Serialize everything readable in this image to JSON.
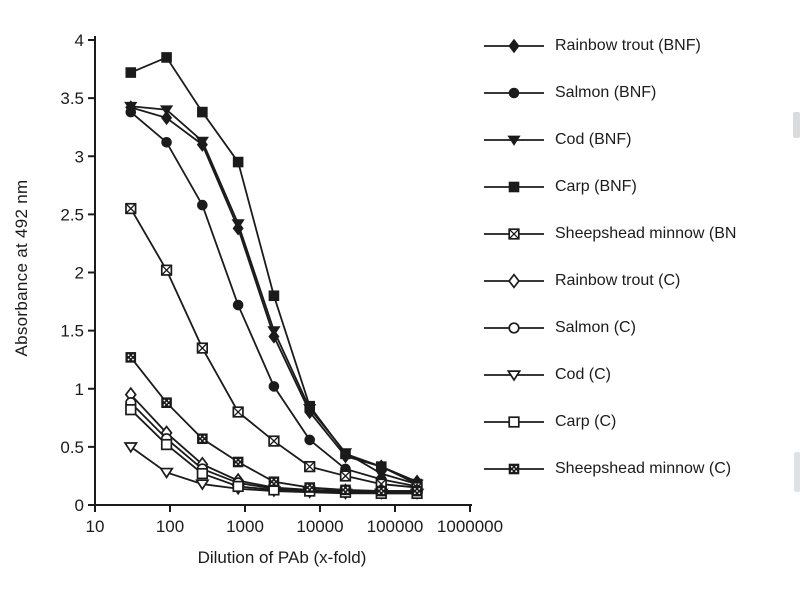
{
  "page": {
    "background": "#ffffff",
    "ink_color": "#1b1b1b"
  },
  "chart_data": {
    "type": "line",
    "title": "",
    "xlabel": "Dilution of PAb (x-fold)",
    "ylabel": "Absorbance at  492 nm",
    "x_scale": "log10",
    "xlim": [
      10,
      1000000
    ],
    "ylim": [
      0,
      4
    ],
    "grid": false,
    "legend_position": "right",
    "x_ticks": [
      10,
      100,
      1000,
      10000,
      100000,
      1000000
    ],
    "x_tick_labels": [
      "10",
      "100",
      "1000",
      "10000",
      "100000",
      "1000000"
    ],
    "y_ticks": [
      0,
      0.5,
      1,
      1.5,
      2,
      2.5,
      3,
      3.5,
      4
    ],
    "y_tick_labels": [
      "0",
      "0.5",
      "1",
      "1.5",
      "2",
      "2.5",
      "3",
      "3.5",
      "4"
    ],
    "x": [
      30,
      90,
      270,
      810,
      2430,
      7290,
      21870,
      65610,
      196830
    ],
    "series": [
      {
        "name": "Rainbow trout (BNF)",
        "marker": "diamond-filled",
        "values": [
          3.42,
          3.33,
          3.1,
          2.38,
          1.45,
          0.8,
          0.42,
          0.33,
          0.2
        ]
      },
      {
        "name": "Salmon (BNF)",
        "marker": "circle-filled",
        "values": [
          3.38,
          3.12,
          2.58,
          1.72,
          1.02,
          0.56,
          0.31,
          0.22,
          0.16
        ]
      },
      {
        "name": "Cod (BNF)",
        "marker": "triangle-down-filled",
        "values": [
          3.43,
          3.4,
          3.13,
          2.42,
          1.5,
          0.83,
          0.45,
          0.27,
          0.18
        ]
      },
      {
        "name": "Carp (BNF)",
        "marker": "square-filled",
        "values": [
          3.72,
          3.85,
          3.38,
          2.95,
          1.8,
          0.85,
          0.44,
          0.33,
          0.18
        ]
      },
      {
        "name": "Sheepshead minnow (BN",
        "marker": "square-x",
        "values": [
          2.55,
          2.02,
          1.35,
          0.8,
          0.55,
          0.33,
          0.25,
          0.18,
          0.15
        ]
      },
      {
        "name": "Rainbow trout (C)",
        "marker": "diamond-open",
        "values": [
          0.95,
          0.62,
          0.35,
          0.21,
          0.15,
          0.13,
          0.12,
          0.12,
          0.12
        ]
      },
      {
        "name": "Salmon (C)",
        "marker": "circle-open",
        "values": [
          0.88,
          0.57,
          0.31,
          0.19,
          0.14,
          0.13,
          0.12,
          0.11,
          0.11
        ]
      },
      {
        "name": "Cod (C)",
        "marker": "triangle-down-open",
        "values": [
          0.5,
          0.28,
          0.18,
          0.14,
          0.12,
          0.11,
          0.1,
          0.1,
          0.1
        ]
      },
      {
        "name": "Carp (C)",
        "marker": "square-open",
        "values": [
          0.82,
          0.52,
          0.27,
          0.16,
          0.13,
          0.12,
          0.11,
          0.1,
          0.1
        ]
      },
      {
        "name": "Sheepshead minnow (C)",
        "marker": "square-speckled",
        "values": [
          1.27,
          0.88,
          0.57,
          0.37,
          0.2,
          0.15,
          0.13,
          0.12,
          0.12
        ]
      }
    ]
  }
}
